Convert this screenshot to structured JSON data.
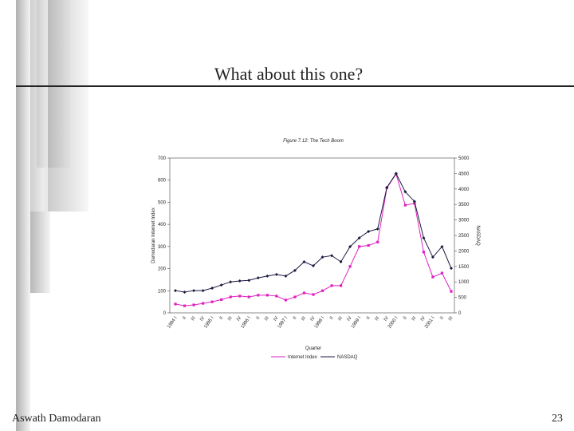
{
  "slide_title": "What about this one?",
  "footer": {
    "author": "Aswath Damodaran",
    "page": "23"
  },
  "chart_data": {
    "type": "line",
    "title": "Figure 7.12: The Tech Boom",
    "x_label": "Quarter",
    "y_label": "Damodaran Internet Index",
    "y2_label": "NASDAQ",
    "categories": [
      "1994 I",
      "II",
      "III",
      "IV",
      "1995 I",
      "II",
      "III",
      "IV",
      "1996 I",
      "II",
      "III",
      "IV",
      "1997 I",
      "II",
      "III",
      "IV",
      "1998 I",
      "II",
      "III",
      "IV",
      "1999 I",
      "II",
      "III",
      "IV",
      "2000 I",
      "II",
      "III",
      "IV",
      "2001 I",
      "II",
      "III"
    ],
    "series": [
      {
        "name": "Internet Index",
        "color": "#e020c0",
        "values": [
          40,
          32,
          36,
          43,
          50,
          60,
          72,
          76,
          72,
          80,
          80,
          76,
          58,
          72,
          90,
          83,
          100,
          123,
          123,
          210,
          300,
          305,
          320,
          565,
          628,
          487,
          495,
          275,
          162,
          180,
          97
        ]
      },
      {
        "name": "NASDAQ",
        "color": "#1a1a40",
        "axis": "y2",
        "values": [
          720,
          670,
          720,
          720,
          800,
          900,
          1000,
          1030,
          1050,
          1130,
          1190,
          1240,
          1190,
          1370,
          1650,
          1520,
          1800,
          1850,
          1650,
          2140,
          2420,
          2630,
          2710,
          4050,
          4500,
          3910,
          3600,
          2420,
          1800,
          2140,
          1440
        ]
      }
    ],
    "ylim": [
      0,
      700
    ],
    "yticks": [
      0,
      100,
      200,
      300,
      400,
      500,
      600,
      700
    ],
    "y2lim": [
      0,
      5000
    ],
    "y2ticks": [
      0,
      500,
      1000,
      1500,
      2000,
      2500,
      3000,
      3500,
      4000,
      4500,
      5000
    ],
    "legend": "bottom"
  }
}
